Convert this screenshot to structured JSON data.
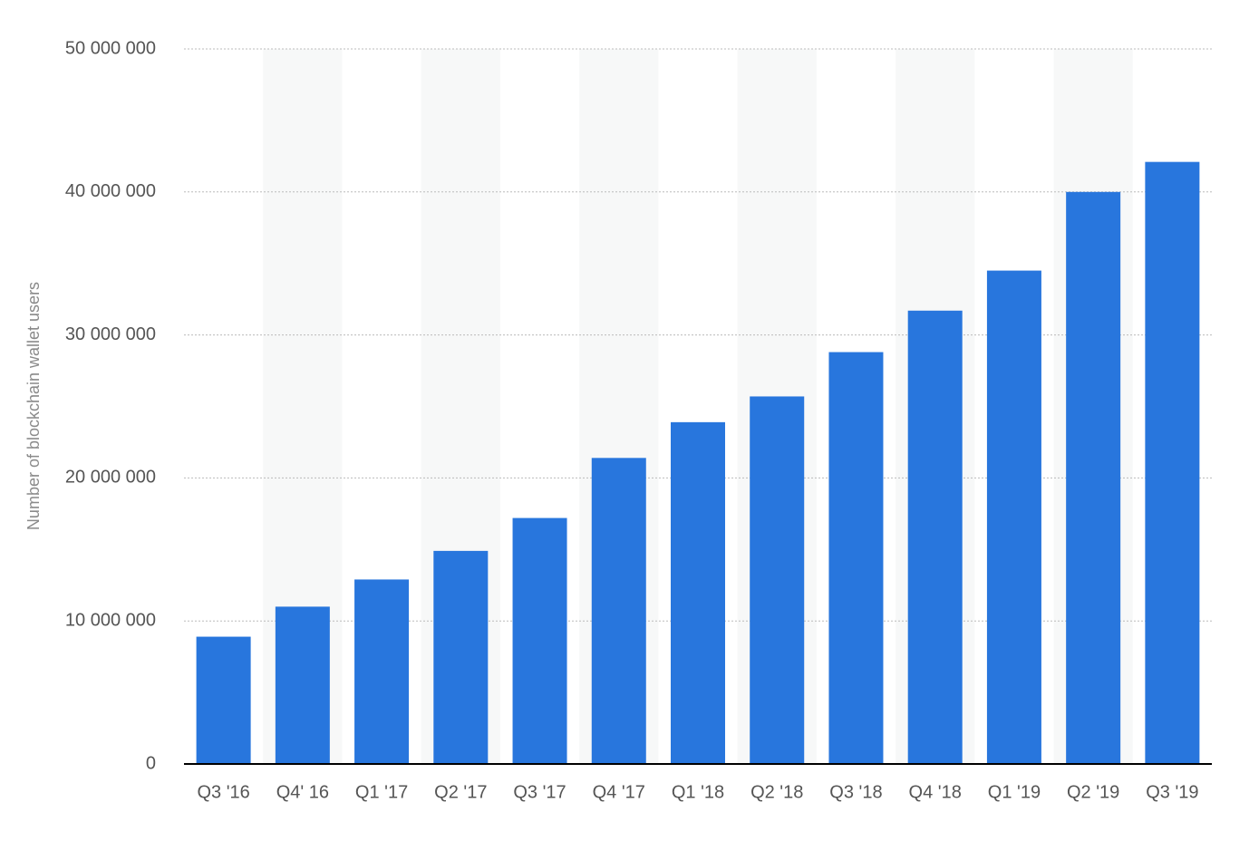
{
  "chart_data": {
    "type": "bar",
    "y_label": "Number of blockchain wallet users",
    "categories": [
      "Q3 '16",
      "Q4' 16",
      "Q1 '17",
      "Q2 '17",
      "Q3 '17",
      "Q4 '17",
      "Q1 '18",
      "Q2 '18",
      "Q3 '18",
      "Q4 '18",
      "Q1 '19",
      "Q2 '19",
      "Q3 '19"
    ],
    "values": [
      8900000,
      11000000,
      12900000,
      14900000,
      17200000,
      21400000,
      23900000,
      25700000,
      28800000,
      31700000,
      34500000,
      40000000,
      42100000
    ],
    "color": "#2876dd",
    "ylim": [
      0,
      50000000
    ],
    "yticks": [
      0,
      {
        "value": 10000000,
        "label": "10 000 000"
      },
      {
        "value": 20000000,
        "label": "20 000 000"
      },
      {
        "value": 30000000,
        "label": "30 000 000"
      },
      {
        "value": 40000000,
        "label": "40 000 000"
      },
      {
        "value": 50000000,
        "label": "50 000 000"
      }
    ],
    "grid": true
  }
}
